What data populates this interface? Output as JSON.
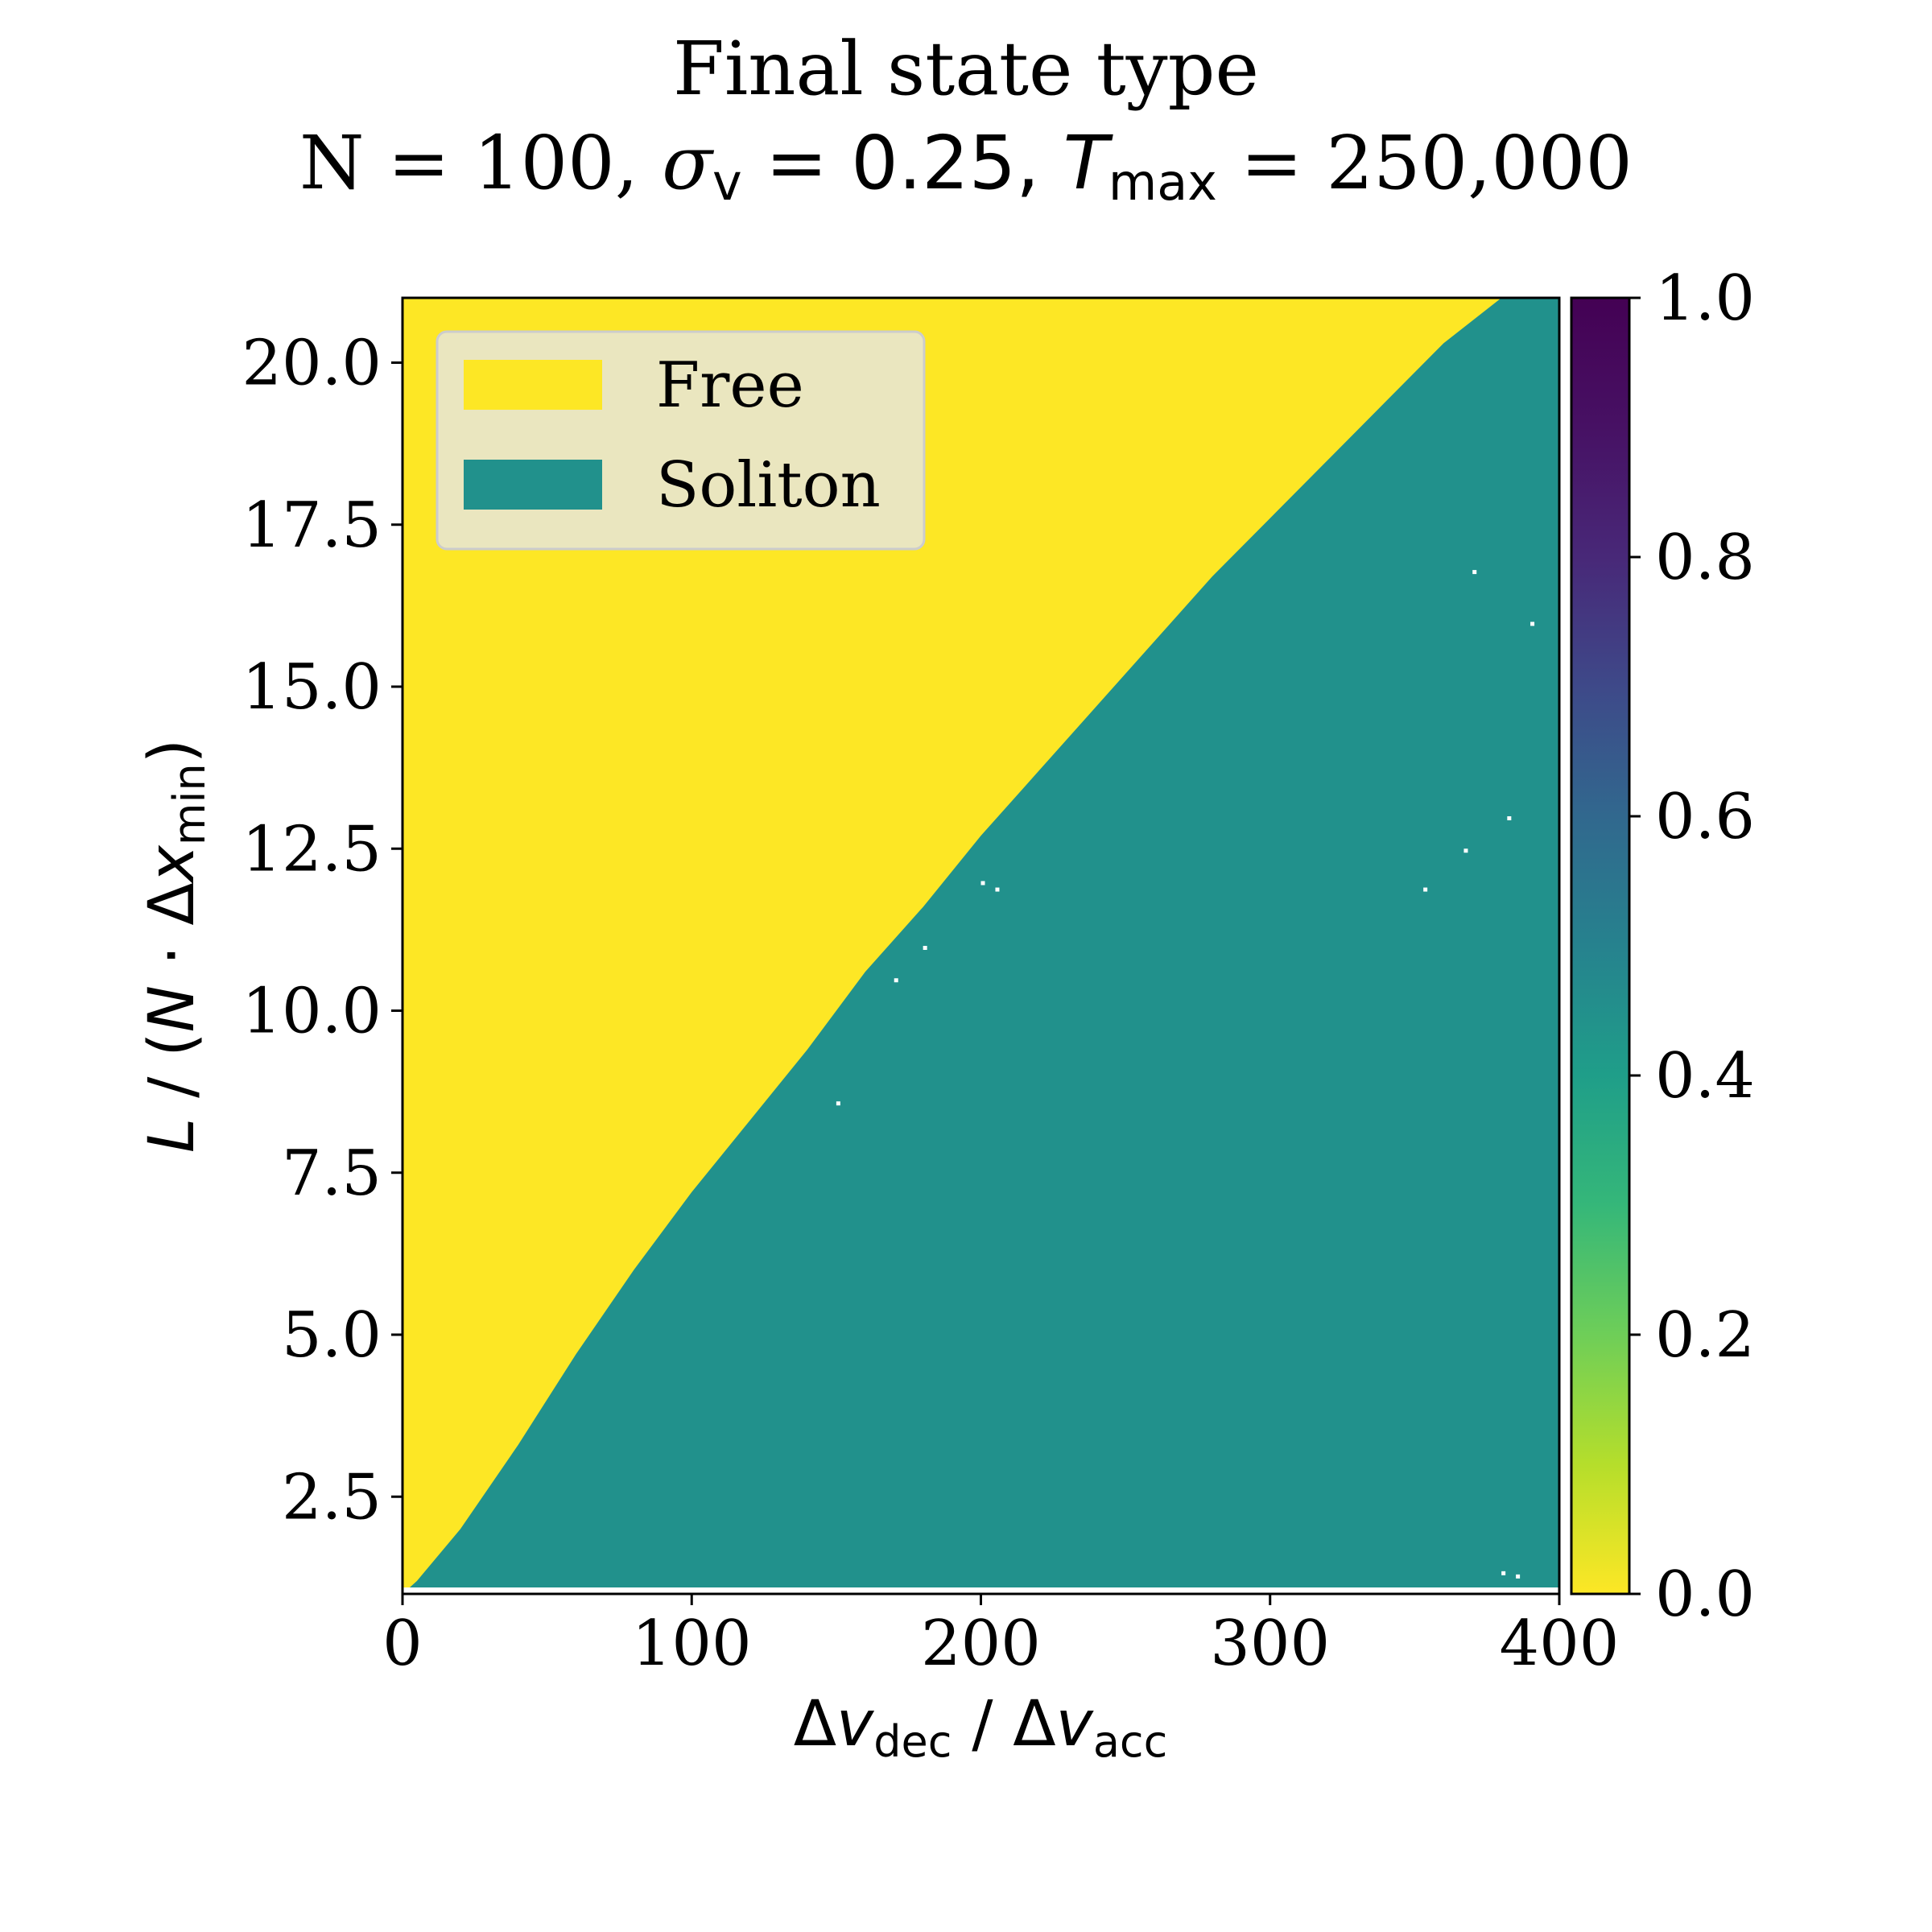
{
  "chart_data": {
    "type": "heatmap",
    "title_line1": "Final state type",
    "title_line2": {
      "part_n": "N = 100, ",
      "sigma_symbol": "σ",
      "sigma_sub": "v",
      "sigma_value": " = 0.25, ",
      "t_symbol": "T",
      "t_sub": "max",
      "t_value": " = 250,000"
    },
    "xlabel": {
      "delta1": "Δ",
      "v1": "v",
      "sub1": "dec",
      "sep": " / ",
      "delta2": "Δ",
      "v2": "v",
      "sub2": "acc"
    },
    "ylabel": {
      "l": "L",
      "pre": " / (",
      "n": "N",
      "dot": " · Δ",
      "x": "x",
      "sub": "min",
      "post": ")"
    },
    "xlim": [
      0,
      400
    ],
    "ylim": [
      1.0,
      21.0
    ],
    "xticks": [
      0,
      100,
      200,
      300,
      400
    ],
    "xtick_labels": [
      "0",
      "100",
      "200",
      "300",
      "400"
    ],
    "yticks": [
      2.5,
      5.0,
      7.5,
      10.0,
      12.5,
      15.0,
      17.5,
      20.0
    ],
    "ytick_labels": [
      "2.5",
      "5.0",
      "7.5",
      "10.0",
      "12.5",
      "15.0",
      "17.5",
      "20.0"
    ],
    "colorbar": {
      "colormap": "viridis_r",
      "range": [
        0.0,
        1.0
      ],
      "ticks": [
        0.0,
        0.2,
        0.4,
        0.6,
        0.8,
        1.0
      ],
      "tick_labels": [
        "0.0",
        "0.2",
        "0.4",
        "0.6",
        "0.8",
        "1.0"
      ]
    },
    "legend": {
      "placement": "upper-left",
      "entries": [
        {
          "label": "Free",
          "value": 0.0,
          "color": "#fde725"
        },
        {
          "label": "Soliton",
          "value": 0.5,
          "color": "#21918c"
        }
      ]
    },
    "boundary": {
      "description": "Free region lies above boundary, Soliton below",
      "x": [
        0,
        5,
        20,
        40,
        60,
        80,
        100,
        120,
        140,
        160,
        180,
        200,
        220,
        240,
        260,
        280,
        300,
        320,
        340,
        360,
        380,
        400
      ],
      "y": [
        1.0,
        1.2,
        2.0,
        3.3,
        4.7,
        6.0,
        7.2,
        8.3,
        9.4,
        10.6,
        11.6,
        12.7,
        13.7,
        14.7,
        15.7,
        16.7,
        17.6,
        18.5,
        19.4,
        20.3,
        21.0,
        21.0
      ]
    },
    "colors": {
      "free": "#fde725",
      "soliton": "#21918c",
      "missing": "#ffffff"
    }
  }
}
